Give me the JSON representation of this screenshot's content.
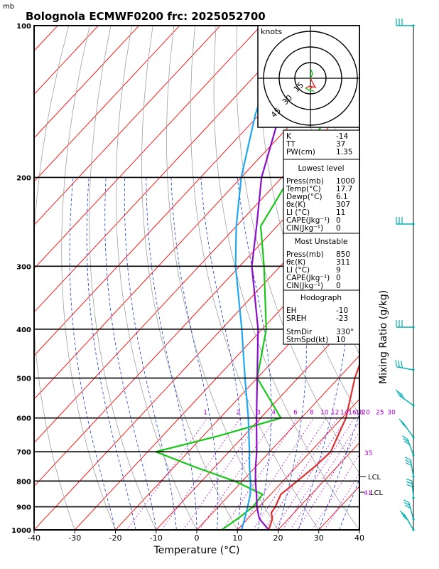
{
  "header": {
    "title": "Bolognola ECMWF0200  frc: 2025052700",
    "mb_unit": "mb"
  },
  "colors": {
    "temperature": "#e03030",
    "dewpoint": "#18c818",
    "parcel": "#8a10c8",
    "wetbulb": "#20a8f0",
    "isotherm": "#ff0000",
    "dry_adiabat": "#a0a0a0",
    "moist_adiabat": "#1a3cd0",
    "mixing_ratio": "#b000d0",
    "wind_barb": "#00b0b0"
  },
  "chart_data": {
    "type": "line",
    "title": "Bolognola ECMWF0200  frc: 2025052700",
    "xlabel": "Temperature (°C)",
    "ylabel": "Mixing Ratio  (g/kg)",
    "x_ticks": [
      "-40",
      "-30",
      "-20",
      "-10",
      "0",
      "10",
      "20",
      "30",
      "40"
    ],
    "pressure_ticks": [
      "100",
      "200",
      "300",
      "400",
      "500",
      "600",
      "700",
      "800",
      "900",
      "1000"
    ],
    "mixing_ratio_labels": [
      "1",
      "2",
      "3",
      "4",
      "6",
      "8",
      "10",
      "12",
      "14",
      "16",
      "18",
      "20",
      "25",
      "30"
    ],
    "right_labels": [
      "35",
      "LCL",
      "41",
      "LCL"
    ],
    "series": [
      {
        "name": "",
        "key": "temperature",
        "points": [
          [
            1000,
            17.7
          ],
          [
            950,
            16
          ],
          [
            925,
            14.4
          ],
          [
            900,
            14
          ],
          [
            850,
            12.5
          ],
          [
            800,
            13.5
          ],
          [
            750,
            14.5
          ],
          [
            700,
            15
          ],
          [
            600,
            11
          ],
          [
            500,
            4
          ],
          [
            400,
            -3
          ],
          [
            300,
            -12
          ],
          [
            250,
            -19
          ],
          [
            200,
            -15
          ],
          [
            150,
            -7
          ],
          [
            100,
            6
          ]
        ]
      },
      {
        "name": "",
        "key": "dewpoint",
        "points": [
          [
            1000,
            6.1
          ],
          [
            950,
            7.5
          ],
          [
            900,
            8.5
          ],
          [
            850,
            8
          ],
          [
            800,
            -2
          ],
          [
            750,
            -15
          ],
          [
            700,
            -28
          ],
          [
            650,
            -16
          ],
          [
            600,
            -5
          ],
          [
            500,
            -20
          ],
          [
            400,
            -29
          ],
          [
            300,
            -44
          ],
          [
            250,
            -54
          ],
          [
            200,
            -58
          ],
          [
            150,
            -63
          ],
          [
            100,
            -72
          ]
        ]
      },
      {
        "name": "",
        "key": "parcel",
        "points": [
          [
            1000,
            17.7
          ],
          [
            950,
            12.8
          ],
          [
            900,
            9.5
          ],
          [
            850,
            6.5
          ],
          [
            800,
            3.2
          ],
          [
            750,
            0
          ],
          [
            700,
            -3.2
          ],
          [
            600,
            -11
          ],
          [
            500,
            -20
          ],
          [
            400,
            -31
          ],
          [
            300,
            -47
          ],
          [
            250,
            -55
          ],
          [
            200,
            -65
          ],
          [
            150,
            -75
          ],
          [
            100,
            -89
          ]
        ]
      },
      {
        "name": "",
        "key": "wetbulb",
        "points": [
          [
            1000,
            11
          ],
          [
            950,
            9.2
          ],
          [
            900,
            7.2
          ],
          [
            850,
            5
          ],
          [
            800,
            2
          ],
          [
            750,
            -1.5
          ],
          [
            700,
            -5
          ],
          [
            600,
            -13
          ],
          [
            500,
            -23
          ],
          [
            400,
            -35
          ],
          [
            300,
            -51
          ],
          [
            250,
            -60
          ],
          [
            200,
            -70
          ],
          [
            150,
            -81
          ],
          [
            100,
            -94
          ]
        ]
      }
    ],
    "hodograph": {
      "unit_label": "knots",
      "ring_labels": [
        "15",
        "30",
        "45"
      ]
    },
    "indices": {
      "rows": [
        [
          "K",
          "-14"
        ],
        [
          "TT",
          "37"
        ],
        [
          "PW(cm)",
          "1.35"
        ]
      ]
    },
    "lowest_level": {
      "heading": "Lowest level",
      "rows": [
        [
          "Press(mb)",
          "1000"
        ],
        [
          "Temp(°C)",
          "17.7"
        ],
        [
          "Dewp(°C)",
          "6.1"
        ],
        [
          "θε(K)",
          "307"
        ],
        [
          "LI (°C)",
          "11"
        ],
        [
          "CAPE(Jkg⁻¹)",
          "0"
        ],
        [
          "CIN(Jkg⁻¹)",
          "0"
        ]
      ]
    },
    "most_unstable": {
      "heading": "Most Unstable",
      "rows": [
        [
          "Press(mb)",
          "850"
        ],
        [
          "θε(K)",
          "311"
        ],
        [
          "LI (°C)",
          "9"
        ],
        [
          "CAPE(Jkg⁻¹)",
          "0"
        ],
        [
          "CIN(Jkg⁻¹)",
          "0"
        ]
      ]
    },
    "hodo_stats": {
      "heading": "Hodograph",
      "rows": [
        [
          "EH",
          "-10"
        ],
        [
          "SREH",
          "-23"
        ],
        [
          "StmDir",
          "330°"
        ],
        [
          "StmSpd(kt)",
          "10"
        ]
      ]
    }
  }
}
